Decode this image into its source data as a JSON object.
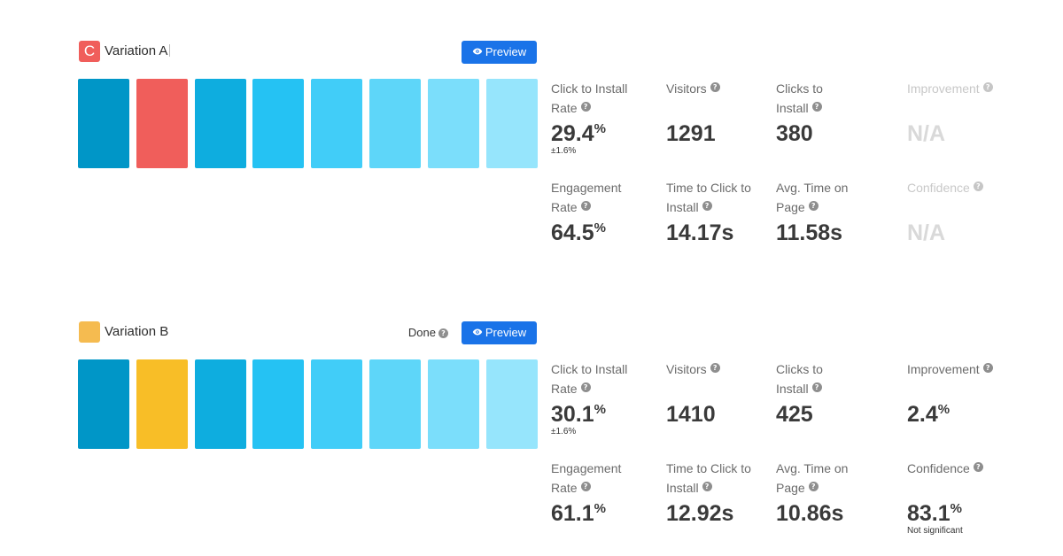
{
  "common": {
    "preview_label": "Preview",
    "help_glyph": "?",
    "help_icon": "question-circle-icon",
    "preview_icon": "eye-icon"
  },
  "variations": [
    {
      "badge_text": "C",
      "badge_color": "#f05e5b",
      "name": "Variation A",
      "status": "",
      "swatch_colors": [
        "#0096c7",
        "#f05e5b",
        "#0eaddf",
        "#25c2f3",
        "#41cdf8",
        "#5ed6f9",
        "#7bdefb",
        "#96e5fc"
      ],
      "metrics": {
        "ctir_label": "Click to Install Rate",
        "ctir_value": "29.4",
        "ctir_unit": "%",
        "ctir_margin": "±1.6%",
        "visitors_label": "Visitors",
        "visitors_value": "1291",
        "clicks_label": "Clicks to Install",
        "clicks_value": "380",
        "improvement_label": "Improvement",
        "improvement_value": "N/A",
        "improvement_unit": "",
        "engagement_label": "Engagement Rate",
        "engagement_value": "64.5",
        "engagement_unit": "%",
        "ttc_label": "Time to Click to Install",
        "ttc_value": "14.17s",
        "avg_time_label": "Avg. Time on Page",
        "avg_time_value": "11.58s",
        "confidence_label": "Confidence",
        "confidence_value": "N/A",
        "confidence_unit": "",
        "confidence_note": ""
      }
    },
    {
      "badge_text": "",
      "badge_color": "#f5bb50",
      "name": "Variation B",
      "status": "Done",
      "swatch_colors": [
        "#0096c7",
        "#f8be27",
        "#0eaddf",
        "#25c2f3",
        "#41cdf8",
        "#5ed6f9",
        "#7bdefb",
        "#96e5fc"
      ],
      "metrics": {
        "ctir_label": "Click to Install Rate",
        "ctir_value": "30.1",
        "ctir_unit": "%",
        "ctir_margin": "±1.6%",
        "visitors_label": "Visitors",
        "visitors_value": "1410",
        "clicks_label": "Clicks to Install",
        "clicks_value": "425",
        "improvement_label": "Improvement",
        "improvement_value": "2.4",
        "improvement_unit": "%",
        "engagement_label": "Engagement Rate",
        "engagement_value": "61.1",
        "engagement_unit": "%",
        "ttc_label": "Time to Click to Install",
        "ttc_value": "12.92s",
        "avg_time_label": "Avg. Time on Page",
        "avg_time_value": "10.86s",
        "confidence_label": "Confidence",
        "confidence_value": "83.1",
        "confidence_unit": "%",
        "confidence_note": "Not significant"
      }
    }
  ]
}
